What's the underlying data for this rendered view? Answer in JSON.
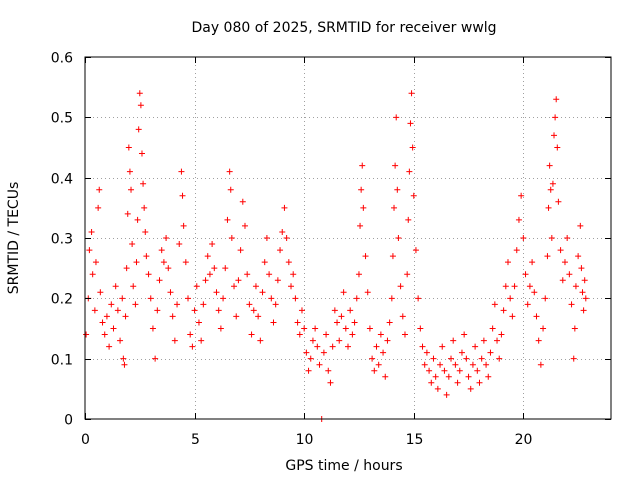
{
  "chart_data": {
    "type": "scatter",
    "title": "Day 080 of 2025, SRMTID for receiver wwlg",
    "xlabel": "GPS time / hours",
    "ylabel": "SRMTID / TECUs",
    "xlim": [
      0,
      24
    ],
    "ylim": [
      0,
      0.6
    ],
    "xticks": [
      0,
      5,
      10,
      15,
      20
    ],
    "xtick_labels": [
      "0",
      "5",
      "10",
      "15",
      "20"
    ],
    "yticks": [
      0,
      0.1,
      0.2,
      0.3,
      0.4,
      0.5,
      0.6
    ],
    "ytick_labels": [
      "0",
      "0.1",
      "0.2",
      "0.3",
      "0.4",
      "0.5",
      "0.6"
    ],
    "grid": true,
    "marker": "+",
    "color": "#ff0000",
    "series": [
      {
        "name": "SRMTID",
        "points": [
          [
            0.05,
            0.14
          ],
          [
            0.15,
            0.2
          ],
          [
            0.2,
            0.28
          ],
          [
            0.3,
            0.31
          ],
          [
            0.35,
            0.24
          ],
          [
            0.45,
            0.18
          ],
          [
            0.5,
            0.26
          ],
          [
            0.6,
            0.35
          ],
          [
            0.65,
            0.38
          ],
          [
            0.7,
            0.21
          ],
          [
            0.8,
            0.16
          ],
          [
            0.9,
            0.14
          ],
          [
            1.0,
            0.17
          ],
          [
            1.1,
            0.12
          ],
          [
            1.2,
            0.19
          ],
          [
            1.3,
            0.15
          ],
          [
            1.4,
            0.22
          ],
          [
            1.5,
            0.18
          ],
          [
            1.6,
            0.13
          ],
          [
            1.7,
            0.2
          ],
          [
            1.75,
            0.1
          ],
          [
            1.8,
            0.09
          ],
          [
            1.85,
            0.17
          ],
          [
            1.9,
            0.25
          ],
          [
            1.95,
            0.34
          ],
          [
            2.0,
            0.45
          ],
          [
            2.05,
            0.41
          ],
          [
            2.1,
            0.38
          ],
          [
            2.15,
            0.29
          ],
          [
            2.2,
            0.22
          ],
          [
            2.3,
            0.19
          ],
          [
            2.35,
            0.26
          ],
          [
            2.4,
            0.33
          ],
          [
            2.45,
            0.48
          ],
          [
            2.5,
            0.54
          ],
          [
            2.55,
            0.52
          ],
          [
            2.6,
            0.44
          ],
          [
            2.65,
            0.39
          ],
          [
            2.7,
            0.35
          ],
          [
            2.75,
            0.31
          ],
          [
            2.8,
            0.27
          ],
          [
            2.9,
            0.24
          ],
          [
            3.0,
            0.2
          ],
          [
            3.1,
            0.15
          ],
          [
            3.2,
            0.1
          ],
          [
            3.3,
            0.18
          ],
          [
            3.4,
            0.23
          ],
          [
            3.5,
            0.28
          ],
          [
            3.6,
            0.26
          ],
          [
            3.7,
            0.3
          ],
          [
            3.8,
            0.25
          ],
          [
            3.9,
            0.21
          ],
          [
            4.0,
            0.17
          ],
          [
            4.1,
            0.13
          ],
          [
            4.2,
            0.19
          ],
          [
            4.3,
            0.29
          ],
          [
            4.4,
            0.41
          ],
          [
            4.45,
            0.37
          ],
          [
            4.5,
            0.32
          ],
          [
            4.6,
            0.26
          ],
          [
            4.7,
            0.2
          ],
          [
            4.8,
            0.14
          ],
          [
            4.9,
            0.12
          ],
          [
            5.0,
            0.18
          ],
          [
            5.1,
            0.22
          ],
          [
            5.2,
            0.16
          ],
          [
            5.3,
            0.13
          ],
          [
            5.4,
            0.19
          ],
          [
            5.5,
            0.23
          ],
          [
            5.6,
            0.27
          ],
          [
            5.7,
            0.24
          ],
          [
            5.8,
            0.29
          ],
          [
            5.9,
            0.25
          ],
          [
            6.0,
            0.21
          ],
          [
            6.1,
            0.18
          ],
          [
            6.2,
            0.15
          ],
          [
            6.3,
            0.2
          ],
          [
            6.4,
            0.25
          ],
          [
            6.5,
            0.33
          ],
          [
            6.6,
            0.41
          ],
          [
            6.65,
            0.38
          ],
          [
            6.7,
            0.3
          ],
          [
            6.8,
            0.22
          ],
          [
            6.9,
            0.17
          ],
          [
            7.0,
            0.23
          ],
          [
            7.1,
            0.28
          ],
          [
            7.2,
            0.36
          ],
          [
            7.3,
            0.32
          ],
          [
            7.4,
            0.24
          ],
          [
            7.5,
            0.19
          ],
          [
            7.6,
            0.14
          ],
          [
            7.7,
            0.18
          ],
          [
            7.8,
            0.22
          ],
          [
            7.9,
            0.17
          ],
          [
            8.0,
            0.13
          ],
          [
            8.1,
            0.21
          ],
          [
            8.2,
            0.26
          ],
          [
            8.3,
            0.3
          ],
          [
            8.4,
            0.24
          ],
          [
            8.5,
            0.2
          ],
          [
            8.6,
            0.16
          ],
          [
            8.7,
            0.19
          ],
          [
            8.8,
            0.23
          ],
          [
            8.9,
            0.28
          ],
          [
            9.0,
            0.31
          ],
          [
            9.1,
            0.35
          ],
          [
            9.2,
            0.3
          ],
          [
            9.3,
            0.26
          ],
          [
            9.4,
            0.22
          ],
          [
            9.5,
            0.24
          ],
          [
            9.6,
            0.2
          ],
          [
            9.7,
            0.16
          ],
          [
            9.8,
            0.14
          ],
          [
            9.9,
            0.18
          ],
          [
            10.0,
            0.15
          ],
          [
            10.1,
            0.11
          ],
          [
            10.2,
            0.08
          ],
          [
            10.3,
            0.1
          ],
          [
            10.4,
            0.13
          ],
          [
            10.5,
            0.15
          ],
          [
            10.6,
            0.12
          ],
          [
            10.7,
            0.09
          ],
          [
            10.8,
            0.0
          ],
          [
            10.9,
            0.11
          ],
          [
            11.0,
            0.14
          ],
          [
            11.1,
            0.08
          ],
          [
            11.2,
            0.06
          ],
          [
            11.3,
            0.12
          ],
          [
            11.4,
            0.18
          ],
          [
            11.5,
            0.16
          ],
          [
            11.6,
            0.13
          ],
          [
            11.7,
            0.17
          ],
          [
            11.8,
            0.21
          ],
          [
            11.9,
            0.15
          ],
          [
            12.0,
            0.12
          ],
          [
            12.1,
            0.18
          ],
          [
            12.2,
            0.14
          ],
          [
            12.3,
            0.16
          ],
          [
            12.4,
            0.2
          ],
          [
            12.5,
            0.24
          ],
          [
            12.55,
            0.32
          ],
          [
            12.6,
            0.38
          ],
          [
            12.65,
            0.42
          ],
          [
            12.7,
            0.35
          ],
          [
            12.8,
            0.27
          ],
          [
            12.9,
            0.21
          ],
          [
            13.0,
            0.15
          ],
          [
            13.1,
            0.1
          ],
          [
            13.2,
            0.08
          ],
          [
            13.3,
            0.12
          ],
          [
            13.4,
            0.09
          ],
          [
            13.5,
            0.14
          ],
          [
            13.6,
            0.11
          ],
          [
            13.7,
            0.07
          ],
          [
            13.8,
            0.13
          ],
          [
            13.9,
            0.16
          ],
          [
            14.0,
            0.2
          ],
          [
            14.05,
            0.27
          ],
          [
            14.1,
            0.35
          ],
          [
            14.15,
            0.42
          ],
          [
            14.2,
            0.5
          ],
          [
            14.25,
            0.38
          ],
          [
            14.3,
            0.3
          ],
          [
            14.4,
            0.22
          ],
          [
            14.5,
            0.17
          ],
          [
            14.6,
            0.14
          ],
          [
            14.7,
            0.24
          ],
          [
            14.75,
            0.33
          ],
          [
            14.8,
            0.41
          ],
          [
            14.85,
            0.49
          ],
          [
            14.9,
            0.54
          ],
          [
            14.95,
            0.45
          ],
          [
            15.0,
            0.37
          ],
          [
            15.1,
            0.28
          ],
          [
            15.2,
            0.2
          ],
          [
            15.3,
            0.15
          ],
          [
            15.4,
            0.12
          ],
          [
            15.5,
            0.09
          ],
          [
            15.6,
            0.11
          ],
          [
            15.7,
            0.08
          ],
          [
            15.8,
            0.06
          ],
          [
            15.9,
            0.1
          ],
          [
            16.0,
            0.07
          ],
          [
            16.1,
            0.05
          ],
          [
            16.2,
            0.09
          ],
          [
            16.3,
            0.12
          ],
          [
            16.4,
            0.08
          ],
          [
            16.5,
            0.04
          ],
          [
            16.6,
            0.07
          ],
          [
            16.7,
            0.1
          ],
          [
            16.8,
            0.13
          ],
          [
            16.9,
            0.09
          ],
          [
            17.0,
            0.06
          ],
          [
            17.1,
            0.08
          ],
          [
            17.2,
            0.11
          ],
          [
            17.3,
            0.14
          ],
          [
            17.4,
            0.1
          ],
          [
            17.5,
            0.07
          ],
          [
            17.6,
            0.05
          ],
          [
            17.7,
            0.09
          ],
          [
            17.8,
            0.12
          ],
          [
            17.9,
            0.08
          ],
          [
            18.0,
            0.06
          ],
          [
            18.1,
            0.1
          ],
          [
            18.2,
            0.13
          ],
          [
            18.3,
            0.09
          ],
          [
            18.4,
            0.07
          ],
          [
            18.5,
            0.11
          ],
          [
            18.6,
            0.15
          ],
          [
            18.7,
            0.19
          ],
          [
            18.8,
            0.13
          ],
          [
            18.9,
            0.1
          ],
          [
            19.0,
            0.14
          ],
          [
            19.1,
            0.18
          ],
          [
            19.2,
            0.22
          ],
          [
            19.3,
            0.26
          ],
          [
            19.4,
            0.2
          ],
          [
            19.5,
            0.17
          ],
          [
            19.6,
            0.22
          ],
          [
            19.7,
            0.28
          ],
          [
            19.8,
            0.33
          ],
          [
            19.9,
            0.37
          ],
          [
            20.0,
            0.3
          ],
          [
            20.1,
            0.24
          ],
          [
            20.2,
            0.19
          ],
          [
            20.3,
            0.22
          ],
          [
            20.4,
            0.26
          ],
          [
            20.5,
            0.21
          ],
          [
            20.6,
            0.17
          ],
          [
            20.7,
            0.13
          ],
          [
            20.8,
            0.09
          ],
          [
            20.9,
            0.15
          ],
          [
            21.0,
            0.2
          ],
          [
            21.1,
            0.27
          ],
          [
            21.15,
            0.35
          ],
          [
            21.2,
            0.42
          ],
          [
            21.25,
            0.38
          ],
          [
            21.3,
            0.3
          ],
          [
            21.35,
            0.39
          ],
          [
            21.4,
            0.47
          ],
          [
            21.45,
            0.5
          ],
          [
            21.5,
            0.53
          ],
          [
            21.55,
            0.45
          ],
          [
            21.6,
            0.36
          ],
          [
            21.7,
            0.28
          ],
          [
            21.8,
            0.23
          ],
          [
            21.9,
            0.26
          ],
          [
            22.0,
            0.3
          ],
          [
            22.1,
            0.24
          ],
          [
            22.2,
            0.19
          ],
          [
            22.3,
            0.1
          ],
          [
            22.35,
            0.15
          ],
          [
            22.4,
            0.22
          ],
          [
            22.5,
            0.27
          ],
          [
            22.6,
            0.32
          ],
          [
            22.65,
            0.25
          ],
          [
            22.7,
            0.21
          ],
          [
            22.75,
            0.18
          ],
          [
            22.8,
            0.23
          ],
          [
            22.85,
            0.2
          ]
        ]
      }
    ]
  }
}
